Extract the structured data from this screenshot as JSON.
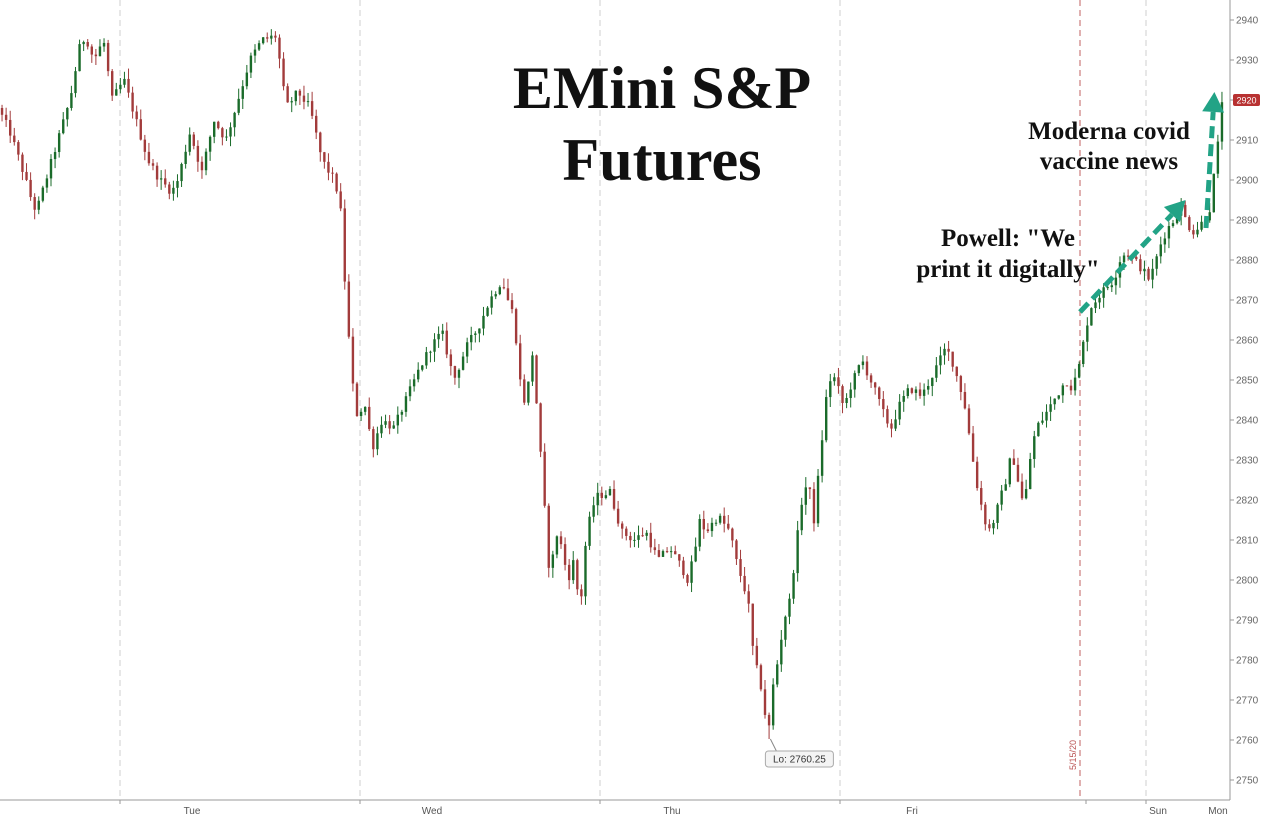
{
  "chart_data": {
    "type": "candlestick",
    "title_lines": [
      "EMini S&P",
      "Futures"
    ],
    "ylim": [
      2745,
      2945
    ],
    "y_ticks": [
      2750,
      2760,
      2770,
      2780,
      2790,
      2800,
      2810,
      2820,
      2830,
      2840,
      2850,
      2860,
      2870,
      2880,
      2890,
      2900,
      2910,
      2920,
      2930,
      2940
    ],
    "x_labels": [
      {
        "label": "Tue",
        "t": 1.0
      },
      {
        "label": "Wed",
        "t": 3.0
      },
      {
        "label": "Thu",
        "t": 5.0
      },
      {
        "label": "Fri",
        "t": 7.0
      },
      {
        "label": "Sun",
        "t": 9.05
      },
      {
        "label": "Mon",
        "t": 9.55
      }
    ],
    "session_dividers": [
      1.0,
      3.0,
      5.0,
      7.0,
      9.55
    ],
    "date_marker": {
      "label": "5/15/20",
      "t": 9.0
    },
    "xlim": [
      0.0,
      10.25
    ],
    "price_path": [
      [
        0.0,
        2918
      ],
      [
        0.1,
        2912
      ],
      [
        0.2,
        2903
      ],
      [
        0.28,
        2895
      ],
      [
        0.32,
        2892
      ],
      [
        0.4,
        2900
      ],
      [
        0.5,
        2910
      ],
      [
        0.6,
        2920
      ],
      [
        0.68,
        2933
      ],
      [
        0.73,
        2936
      ],
      [
        0.8,
        2930
      ],
      [
        0.88,
        2935
      ],
      [
        0.95,
        2920
      ],
      [
        1.05,
        2925
      ],
      [
        1.15,
        2915
      ],
      [
        1.25,
        2905
      ],
      [
        1.35,
        2900
      ],
      [
        1.45,
        2897
      ],
      [
        1.5,
        2900
      ],
      [
        1.6,
        2912
      ],
      [
        1.7,
        2902
      ],
      [
        1.8,
        2915
      ],
      [
        1.9,
        2910
      ],
      [
        2.0,
        2920
      ],
      [
        2.1,
        2930
      ],
      [
        2.2,
        2935
      ],
      [
        2.32,
        2936
      ],
      [
        2.4,
        2918
      ],
      [
        2.5,
        2922
      ],
      [
        2.6,
        2918
      ],
      [
        2.7,
        2905
      ],
      [
        2.8,
        2900
      ],
      [
        2.85,
        2895
      ],
      [
        2.9,
        2870
      ],
      [
        2.95,
        2850
      ],
      [
        3.0,
        2840
      ],
      [
        3.05,
        2845
      ],
      [
        3.12,
        2833
      ],
      [
        3.2,
        2840
      ],
      [
        3.3,
        2838
      ],
      [
        3.4,
        2845
      ],
      [
        3.5,
        2852
      ],
      [
        3.6,
        2858
      ],
      [
        3.7,
        2862
      ],
      [
        3.8,
        2850
      ],
      [
        3.9,
        2858
      ],
      [
        4.0,
        2863
      ],
      [
        4.1,
        2870
      ],
      [
        4.2,
        2875
      ],
      [
        4.25,
        2870
      ],
      [
        4.3,
        2866
      ],
      [
        4.35,
        2850
      ],
      [
        4.4,
        2843
      ],
      [
        4.45,
        2858
      ],
      [
        4.5,
        2840
      ],
      [
        4.55,
        2820
      ],
      [
        4.6,
        2800
      ],
      [
        4.65,
        2812
      ],
      [
        4.7,
        2808
      ],
      [
        4.75,
        2800
      ],
      [
        4.8,
        2805
      ],
      [
        4.85,
        2792
      ],
      [
        4.9,
        2810
      ],
      [
        4.95,
        2818
      ],
      [
        5.0,
        2821
      ],
      [
        5.1,
        2822
      ],
      [
        5.2,
        2812
      ],
      [
        5.3,
        2810
      ],
      [
        5.4,
        2812
      ],
      [
        5.5,
        2805
      ],
      [
        5.6,
        2808
      ],
      [
        5.7,
        2803
      ],
      [
        5.75,
        2800
      ],
      [
        5.8,
        2806
      ],
      [
        5.85,
        2815
      ],
      [
        5.9,
        2812
      ],
      [
        6.0,
        2816
      ],
      [
        6.1,
        2812
      ],
      [
        6.15,
        2805
      ],
      [
        6.2,
        2800
      ],
      [
        6.25,
        2795
      ],
      [
        6.3,
        2780
      ],
      [
        6.35,
        2775
      ],
      [
        6.4,
        2765
      ],
      [
        6.42,
        2761
      ],
      [
        6.45,
        2772
      ],
      [
        6.5,
        2780
      ],
      [
        6.55,
        2790
      ],
      [
        6.6,
        2795
      ],
      [
        6.65,
        2808
      ],
      [
        6.7,
        2820
      ],
      [
        6.75,
        2825
      ],
      [
        6.8,
        2815
      ],
      [
        6.85,
        2830
      ],
      [
        6.9,
        2845
      ],
      [
        6.95,
        2852
      ],
      [
        7.0,
        2848
      ],
      [
        7.05,
        2843
      ],
      [
        7.1,
        2848
      ],
      [
        7.2,
        2855
      ],
      [
        7.3,
        2848
      ],
      [
        7.4,
        2840
      ],
      [
        7.45,
        2838
      ],
      [
        7.5,
        2843
      ],
      [
        7.6,
        2848
      ],
      [
        7.7,
        2846
      ],
      [
        7.8,
        2852
      ],
      [
        7.9,
        2858
      ],
      [
        7.95,
        2855
      ],
      [
        8.0,
        2850
      ],
      [
        8.05,
        2845
      ],
      [
        8.1,
        2835
      ],
      [
        8.15,
        2825
      ],
      [
        8.2,
        2818
      ],
      [
        8.25,
        2812
      ],
      [
        8.3,
        2815
      ],
      [
        8.35,
        2820
      ],
      [
        8.4,
        2825
      ],
      [
        8.45,
        2832
      ],
      [
        8.5,
        2825
      ],
      [
        8.55,
        2818
      ],
      [
        8.6,
        2830
      ],
      [
        8.65,
        2838
      ],
      [
        8.7,
        2840
      ],
      [
        8.8,
        2845
      ],
      [
        8.9,
        2850
      ],
      [
        8.95,
        2848
      ],
      [
        9.0,
        2852
      ],
      [
        9.05,
        2860
      ],
      [
        9.1,
        2868
      ],
      [
        9.15,
        2870
      ],
      [
        9.2,
        2872
      ],
      [
        9.3,
        2875
      ],
      [
        9.35,
        2880
      ],
      [
        9.4,
        2882
      ],
      [
        9.5,
        2879
      ],
      [
        9.55,
        2877
      ],
      [
        9.6,
        2875
      ],
      [
        9.65,
        2880
      ],
      [
        9.7,
        2885
      ],
      [
        9.75,
        2888
      ],
      [
        9.8,
        2890
      ],
      [
        9.85,
        2894
      ],
      [
        9.9,
        2890
      ],
      [
        9.95,
        2887
      ],
      [
        10.0,
        2888
      ],
      [
        10.05,
        2890
      ],
      [
        10.1,
        2893
      ],
      [
        10.12,
        2898
      ],
      [
        10.15,
        2905
      ],
      [
        10.18,
        2912
      ],
      [
        10.2,
        2920
      ]
    ],
    "low_marker": {
      "label": "Lo: 2760.25",
      "value": 2760.25,
      "t": 6.42
    },
    "last_value": {
      "label": "2920",
      "value": 2920
    },
    "annotations": [
      {
        "name": "powell",
        "lines": [
          "Powell: \"We",
          "print it digitally\""
        ],
        "arrow_from": [
          9.0,
          2867
        ],
        "arrow_to": [
          9.88,
          2895
        ]
      },
      {
        "name": "moderna",
        "lines": [
          "Moderna covid",
          "vaccine news"
        ],
        "arrow_from": [
          10.05,
          2888
        ],
        "arrow_to": [
          10.12,
          2922
        ]
      }
    ],
    "colors": {
      "up": "#1a6b2a",
      "down": "#a23b3b",
      "grid": "#cfcfcf",
      "marker": "#c06060",
      "arrow": "#22a386",
      "last_bg": "#b83232"
    }
  }
}
